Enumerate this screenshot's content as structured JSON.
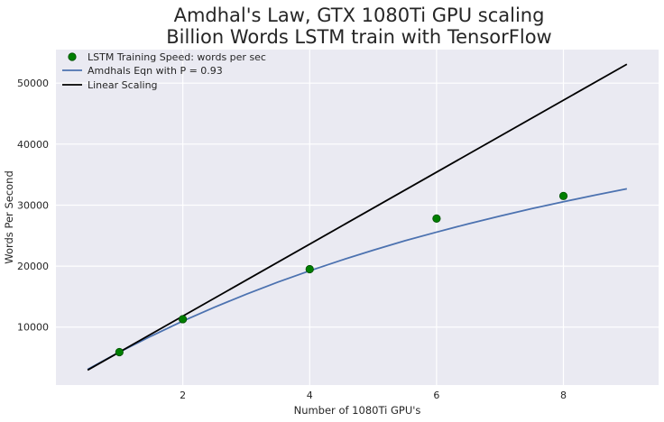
{
  "chart_data": {
    "type": "line",
    "title": "Amdhal's Law, GTX 1080Ti GPU scaling",
    "subtitle": "Billion Words LSTM train with TensorFlow",
    "xlabel": "Number of 1080Ti GPU's",
    "ylabel": "Words Per Second",
    "xlim": [
      0.0,
      9.5
    ],
    "ylim": [
      500,
      55500
    ],
    "x_ticks": [
      2,
      4,
      6,
      8
    ],
    "y_ticks": [
      10000,
      20000,
      30000,
      40000,
      50000
    ],
    "grid": true,
    "legend_position": "top-left",
    "series": [
      {
        "name": "LSTM Training Speed: words per sec",
        "kind": "scatter",
        "color": "#007f00",
        "x": [
          1,
          2,
          4,
          6,
          8
        ],
        "y": [
          5900,
          11300,
          19500,
          27800,
          31500
        ]
      },
      {
        "name": "Amdhals Eqn with P = 0.93",
        "kind": "line",
        "color": "#4c72b0",
        "x": [
          0.5,
          1,
          1.5,
          2,
          2.5,
          3,
          3.5,
          4,
          4.5,
          5,
          5.5,
          6,
          6.5,
          7,
          7.5,
          8,
          8.5,
          9
        ],
        "y": [
          3070,
          5900,
          8520,
          10990,
          13260,
          15390,
          17380,
          19230,
          20970,
          22600,
          24150,
          25570,
          26930,
          28210,
          29420,
          30550,
          31640,
          32670
        ]
      },
      {
        "name": "Linear Scaling",
        "kind": "line",
        "color": "#000000",
        "x": [
          0.5,
          9
        ],
        "y": [
          2950,
          53100
        ]
      }
    ]
  }
}
